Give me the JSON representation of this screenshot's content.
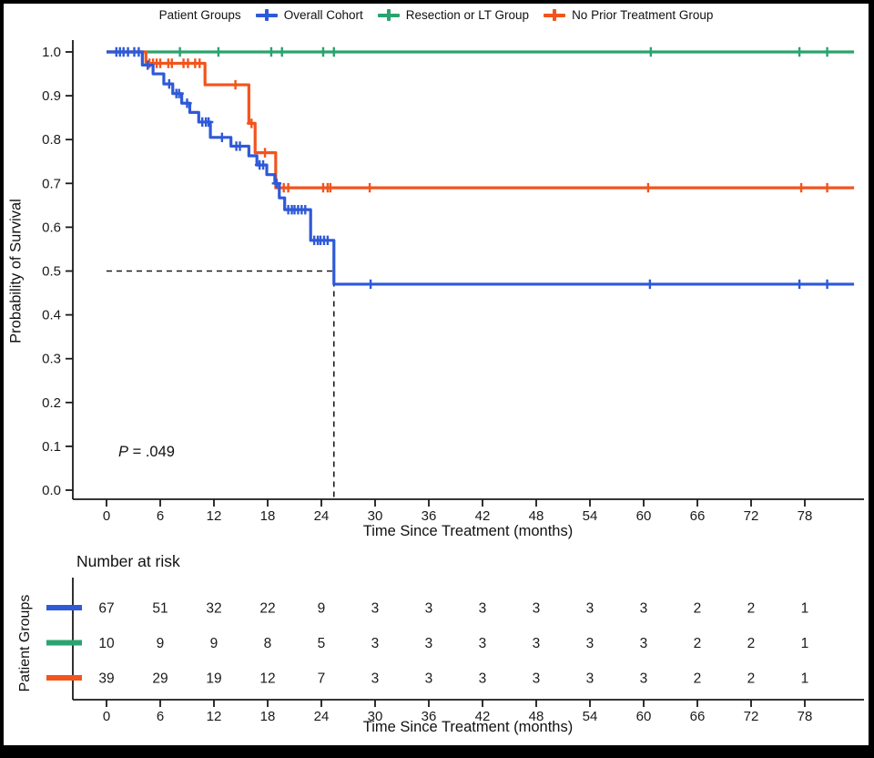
{
  "pvalue_note": "log-rank p value shown on plot",
  "chart_data": {
    "type": "line",
    "subtype": "kaplan-meier-step",
    "title": "",
    "legend_title": "Patient Groups",
    "legend_position": "top",
    "grid": false,
    "xlabel": "Time Since Treatment (months)",
    "ylabel": "Probability of Survival",
    "pvalue_label": "P = .049",
    "xlim": [
      0,
      83.5
    ],
    "ylim": [
      0.0,
      1.0
    ],
    "xticks": [
      0,
      6,
      12,
      18,
      24,
      30,
      36,
      42,
      48,
      54,
      60,
      66,
      72,
      78
    ],
    "ytick_labels": [
      "0.0",
      "0.1",
      "0.2",
      "0.3",
      "0.4",
      "0.5",
      "0.6",
      "0.7",
      "0.8",
      "0.9",
      "1.0"
    ],
    "x_end": 83.5,
    "median": {
      "time": 25.4,
      "survival": 0.5
    },
    "series": [
      {
        "name": "Resection or LT Group",
        "color": "#2AA36E",
        "steps": [
          [
            0,
            1.0
          ]
        ],
        "censors": [
          [
            8.2,
            1.0
          ],
          [
            12.5,
            1.0
          ],
          [
            18.4,
            1.0
          ],
          [
            19.6,
            1.0
          ],
          [
            24.2,
            1.0
          ],
          [
            25.4,
            1.0
          ],
          [
            60.8,
            1.0
          ],
          [
            77.4,
            1.0
          ],
          [
            80.5,
            1.0
          ]
        ]
      },
      {
        "name": "No Prior Treatment Group",
        "color": "#F2541D",
        "steps": [
          [
            0,
            1.0
          ],
          [
            4.4,
            0.974
          ],
          [
            11.0,
            0.925
          ],
          [
            15.9,
            0.837
          ],
          [
            16.6,
            0.77
          ],
          [
            18.9,
            0.69
          ]
        ],
        "censors": [
          [
            4.8,
            0.974
          ],
          [
            5.2,
            0.974
          ],
          [
            5.6,
            0.974
          ],
          [
            6.0,
            0.974
          ],
          [
            6.9,
            0.974
          ],
          [
            7.3,
            0.974
          ],
          [
            8.6,
            0.974
          ],
          [
            9.1,
            0.974
          ],
          [
            9.9,
            0.974
          ],
          [
            10.4,
            0.974
          ],
          [
            14.4,
            0.925
          ],
          [
            16.2,
            0.837
          ],
          [
            17.7,
            0.77
          ],
          [
            19.8,
            0.69
          ],
          [
            20.3,
            0.69
          ],
          [
            24.2,
            0.69
          ],
          [
            24.7,
            0.69
          ],
          [
            25.0,
            0.69
          ],
          [
            29.4,
            0.69
          ],
          [
            60.5,
            0.69
          ],
          [
            77.6,
            0.69
          ],
          [
            80.5,
            0.69
          ]
        ]
      },
      {
        "name": "Overall Cohort",
        "color": "#2E59D8",
        "steps": [
          [
            0,
            1.0
          ],
          [
            4.0,
            0.97
          ],
          [
            5.2,
            0.95
          ],
          [
            6.4,
            0.927
          ],
          [
            7.4,
            0.905
          ],
          [
            8.4,
            0.883
          ],
          [
            9.3,
            0.862
          ],
          [
            10.3,
            0.84
          ],
          [
            11.6,
            0.805
          ],
          [
            13.9,
            0.785
          ],
          [
            15.9,
            0.763
          ],
          [
            16.8,
            0.742
          ],
          [
            17.9,
            0.72
          ],
          [
            18.8,
            0.7
          ],
          [
            19.3,
            0.667
          ],
          [
            19.9,
            0.64
          ],
          [
            22.8,
            0.57
          ],
          [
            25.4,
            0.47
          ]
        ],
        "censors": [
          [
            1.1,
            1.0
          ],
          [
            1.5,
            1.0
          ],
          [
            1.9,
            1.0
          ],
          [
            2.4,
            1.0
          ],
          [
            3.1,
            1.0
          ],
          [
            3.6,
            1.0
          ],
          [
            4.6,
            0.97
          ],
          [
            7.0,
            0.927
          ],
          [
            7.8,
            0.905
          ],
          [
            8.1,
            0.905
          ],
          [
            9.0,
            0.883
          ],
          [
            10.7,
            0.84
          ],
          [
            11.1,
            0.84
          ],
          [
            11.4,
            0.84
          ],
          [
            12.9,
            0.805
          ],
          [
            14.5,
            0.785
          ],
          [
            14.9,
            0.785
          ],
          [
            17.1,
            0.742
          ],
          [
            17.5,
            0.742
          ],
          [
            19.0,
            0.7
          ],
          [
            20.3,
            0.64
          ],
          [
            20.7,
            0.64
          ],
          [
            21.0,
            0.64
          ],
          [
            21.4,
            0.64
          ],
          [
            21.8,
            0.64
          ],
          [
            22.2,
            0.64
          ],
          [
            23.2,
            0.57
          ],
          [
            23.6,
            0.57
          ],
          [
            23.9,
            0.57
          ],
          [
            24.3,
            0.57
          ],
          [
            24.7,
            0.57
          ],
          [
            29.5,
            0.47
          ],
          [
            60.7,
            0.47
          ],
          [
            77.4,
            0.47
          ],
          [
            80.5,
            0.47
          ]
        ]
      }
    ],
    "legend_order": [
      "Overall Cohort",
      "Resection or LT Group",
      "No Prior Treatment Group"
    ],
    "risk_table": {
      "title": "Number at risk",
      "ylabel": "Patient Groups",
      "xlabel": "Time Since Treatment (months)",
      "times": [
        0,
        6,
        12,
        18,
        24,
        30,
        36,
        42,
        48,
        54,
        60,
        66,
        72,
        78
      ],
      "rows": [
        {
          "name": "Overall Cohort",
          "color": "#2E59D8",
          "counts": [
            67,
            51,
            32,
            22,
            9,
            3,
            3,
            3,
            3,
            3,
            3,
            2,
            2,
            1
          ]
        },
        {
          "name": "Resection or LT Group",
          "color": "#2AA36E",
          "counts": [
            10,
            9,
            9,
            8,
            5,
            3,
            3,
            3,
            3,
            3,
            3,
            2,
            2,
            1
          ]
        },
        {
          "name": "No Prior Treatment Group",
          "color": "#F2541D",
          "counts": [
            39,
            29,
            19,
            12,
            7,
            3,
            3,
            3,
            3,
            3,
            3,
            2,
            2,
            1
          ]
        }
      ]
    }
  }
}
